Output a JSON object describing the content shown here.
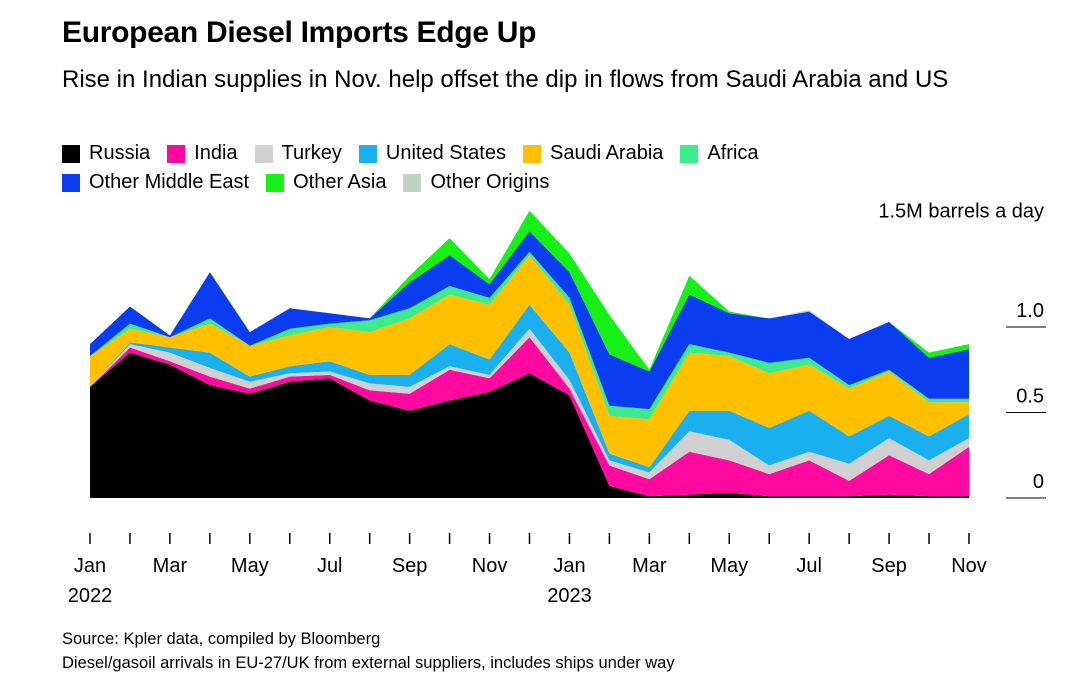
{
  "header": {
    "title": "European Diesel Imports Edge Up",
    "subtitle": "Rise in Indian supplies in Nov. help offset the dip in flows from Saudi Arabia and US"
  },
  "footer": {
    "source": "Source: Kpler data, compiled by Bloomberg",
    "note": "Diesel/gasoil arrivals in EU-27/UK from external suppliers, includes ships under way"
  },
  "chart_data": {
    "type": "area",
    "stacked": true,
    "title": "European Diesel Imports Edge Up",
    "subtitle": "Rise in Indian supplies in Nov. help offset the dip in flows from Saudi Arabia and US",
    "ylabel": "",
    "y_unit_label": "1.5M barrels a day",
    "ylim": [
      0,
      1.5
    ],
    "y_ticks": [
      {
        "value": 0,
        "label": "0"
      },
      {
        "value": 0.5,
        "label": "0.5"
      },
      {
        "value": 1.0,
        "label": "1.0"
      },
      {
        "value": 1.5,
        "label": "1.5M barrels a day"
      }
    ],
    "x": [
      "2022-01",
      "2022-02",
      "2022-03",
      "2022-04",
      "2022-05",
      "2022-06",
      "2022-07",
      "2022-08",
      "2022-09",
      "2022-10",
      "2022-11",
      "2022-12",
      "2023-01",
      "2023-02",
      "2023-03",
      "2023-04",
      "2023-05",
      "2023-06",
      "2023-07",
      "2023-08",
      "2023-09",
      "2023-10",
      "2023-11"
    ],
    "x_tick_labels": [
      {
        "x": "2022-01",
        "month": "Jan",
        "year": "2022"
      },
      {
        "x": "2022-03",
        "month": "Mar",
        "year": ""
      },
      {
        "x": "2022-05",
        "month": "May",
        "year": ""
      },
      {
        "x": "2022-07",
        "month": "Jul",
        "year": ""
      },
      {
        "x": "2022-09",
        "month": "Sep",
        "year": ""
      },
      {
        "x": "2022-11",
        "month": "Nov",
        "year": ""
      },
      {
        "x": "2023-01",
        "month": "Jan",
        "year": "2023"
      },
      {
        "x": "2023-03",
        "month": "Mar",
        "year": ""
      },
      {
        "x": "2023-05",
        "month": "May",
        "year": ""
      },
      {
        "x": "2023-07",
        "month": "Jul",
        "year": ""
      },
      {
        "x": "2023-09",
        "month": "Sep",
        "year": ""
      },
      {
        "x": "2023-11",
        "month": "Nov",
        "year": ""
      }
    ],
    "legend_position": "top",
    "grid": false,
    "series": [
      {
        "name": "Russia",
        "color": "#000000",
        "values": [
          0.65,
          0.85,
          0.78,
          0.66,
          0.61,
          0.68,
          0.7,
          0.57,
          0.51,
          0.57,
          0.62,
          0.73,
          0.6,
          0.07,
          0.01,
          0.02,
          0.03,
          0.01,
          0.01,
          0.01,
          0.02,
          0.01,
          0.01
        ]
      },
      {
        "name": "India",
        "color": "#FF0AA0",
        "values": [
          0.0,
          0.03,
          0.02,
          0.05,
          0.03,
          0.03,
          0.02,
          0.06,
          0.1,
          0.18,
          0.08,
          0.21,
          0.04,
          0.12,
          0.1,
          0.25,
          0.19,
          0.13,
          0.21,
          0.09,
          0.23,
          0.13,
          0.29
        ]
      },
      {
        "name": "Turkey",
        "color": "#D0D0D0",
        "values": [
          0.0,
          0.02,
          0.05,
          0.05,
          0.04,
          0.02,
          0.02,
          0.04,
          0.04,
          0.02,
          0.02,
          0.05,
          0.05,
          0.03,
          0.04,
          0.12,
          0.12,
          0.05,
          0.05,
          0.1,
          0.1,
          0.08,
          0.05
        ]
      },
      {
        "name": "United States",
        "color": "#1AB0F0",
        "values": [
          0.0,
          0.01,
          0.03,
          0.09,
          0.03,
          0.04,
          0.06,
          0.05,
          0.07,
          0.13,
          0.09,
          0.14,
          0.16,
          0.04,
          0.03,
          0.12,
          0.17,
          0.22,
          0.24,
          0.16,
          0.13,
          0.14,
          0.14
        ]
      },
      {
        "name": "Saudi Arabia",
        "color": "#FFC000",
        "values": [
          0.18,
          0.08,
          0.06,
          0.17,
          0.18,
          0.18,
          0.2,
          0.25,
          0.33,
          0.29,
          0.32,
          0.29,
          0.28,
          0.22,
          0.28,
          0.34,
          0.32,
          0.32,
          0.27,
          0.28,
          0.26,
          0.2,
          0.07
        ]
      },
      {
        "name": "Africa",
        "color": "#3DEB8C",
        "values": [
          0.0,
          0.03,
          0.0,
          0.03,
          0.0,
          0.04,
          0.02,
          0.07,
          0.06,
          0.05,
          0.04,
          0.02,
          0.04,
          0.06,
          0.06,
          0.05,
          0.02,
          0.06,
          0.04,
          0.02,
          0.01,
          0.02,
          0.02
        ]
      },
      {
        "name": "Other Middle East",
        "color": "#0A3CF0",
        "values": [
          0.07,
          0.1,
          0.01,
          0.27,
          0.08,
          0.12,
          0.06,
          0.01,
          0.15,
          0.18,
          0.08,
          0.12,
          0.15,
          0.3,
          0.22,
          0.29,
          0.23,
          0.26,
          0.27,
          0.27,
          0.28,
          0.24,
          0.29
        ]
      },
      {
        "name": "Other Asia",
        "color": "#16F016",
        "values": [
          0.0,
          0.0,
          0.0,
          0.0,
          0.0,
          0.0,
          0.0,
          0.0,
          0.04,
          0.1,
          0.03,
          0.12,
          0.11,
          0.23,
          0.01,
          0.11,
          0.01,
          0.0,
          0.0,
          0.0,
          0.0,
          0.03,
          0.03
        ]
      },
      {
        "name": "Other Origins",
        "color": "#C0D2C8",
        "values": [
          0.0,
          0.0,
          0.0,
          0.0,
          0.0,
          0.0,
          0.0,
          0.0,
          0.0,
          0.0,
          0.0,
          0.0,
          0.0,
          0.0,
          0.0,
          0.0,
          0.0,
          0.0,
          0.01,
          0.0,
          0.0,
          0.0,
          0.0
        ]
      }
    ]
  }
}
